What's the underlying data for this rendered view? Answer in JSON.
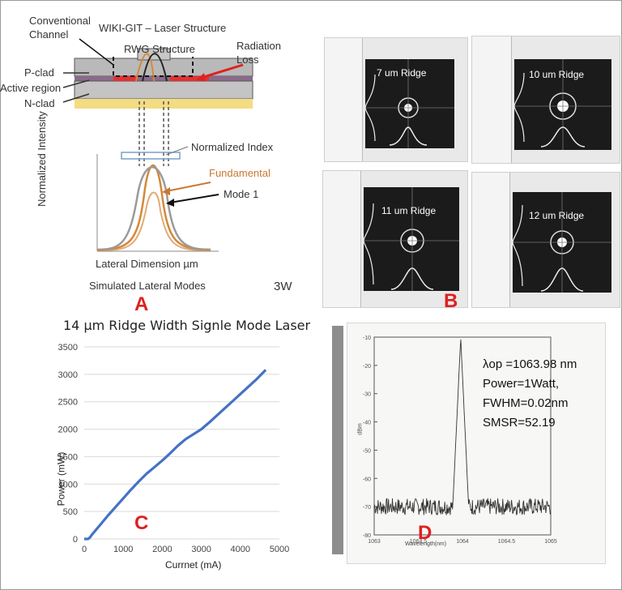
{
  "panel_a": {
    "title": "WIKI-GIT – Laser Structure",
    "conventional_channel": [
      "Conventional",
      "Channel"
    ],
    "rwg_structure": "RWG Structure",
    "radiation_loss": [
      "Radiation",
      "Loss"
    ],
    "p_clad": "P-clad",
    "active_region": "Active region",
    "n_clad": "N-clad",
    "normalized_intensity": "Normalized Intensity",
    "normalized_index": "Normalized Index",
    "fundamental": "Fundamental",
    "mode1": "Mode 1",
    "lateral_dimension": "Lateral Dimension µm",
    "simulated": "Simulated  Lateral Modes",
    "power_tag": "3W",
    "letter": "A"
  },
  "panel_b": {
    "shots": [
      {
        "label": "7 um Ridge"
      },
      {
        "label": "10 um Ridge"
      },
      {
        "label": "11 um Ridge"
      },
      {
        "label": "12 um Ridge"
      }
    ],
    "letter": "B"
  },
  "panel_c": {
    "letter": "C",
    "chart_data": {
      "type": "line",
      "title": "14 µm Ridge Width  Signle Mode Laser",
      "xlabel": "Currnet (mA)",
      "ylabel": "Power (mW)",
      "xlim": [
        0,
        5000
      ],
      "ylim": [
        0,
        3500
      ],
      "xticks": [
        0,
        1000,
        2000,
        3000,
        4000,
        5000
      ],
      "yticks": [
        0,
        500,
        1000,
        1500,
        2000,
        2500,
        3000,
        3500
      ],
      "grid": true,
      "series": [
        {
          "x": [
            0,
            100,
            150,
            200,
            400,
            600,
            800,
            1000,
            1200,
            1400,
            1600,
            1800,
            2000,
            2200,
            2400,
            2600,
            2800,
            3000,
            3200,
            3400,
            3600,
            3800,
            4000,
            4200,
            4400,
            4650
          ],
          "y": [
            0,
            0,
            30,
            80,
            250,
            420,
            580,
            740,
            900,
            1050,
            1190,
            1310,
            1430,
            1560,
            1700,
            1820,
            1910,
            2000,
            2120,
            2250,
            2380,
            2510,
            2640,
            2770,
            2900,
            3080
          ]
        }
      ]
    }
  },
  "panel_d": {
    "letter": "D",
    "annotations": [
      "λop =1063.98 nm",
      "Power=1Watt,",
      "FWHM=0.02nm",
      "SMSR=52.19"
    ],
    "chart_data": {
      "type": "line",
      "xlabel": "Wavelength(nm)",
      "ylabel": "dBm",
      "xlim": [
        1063,
        1065
      ],
      "ylim": [
        -80,
        -10
      ],
      "xticks": [
        "1063",
        "1063.5",
        "1064",
        "1064.5",
        "1065"
      ],
      "yticks": [
        "-10",
        "-20",
        "-30",
        "-40",
        "-50",
        "-60",
        "-70",
        "-80"
      ],
      "peak_wavelength": 1063.98,
      "peak_level": -10,
      "noise_floor": -70
    }
  }
}
